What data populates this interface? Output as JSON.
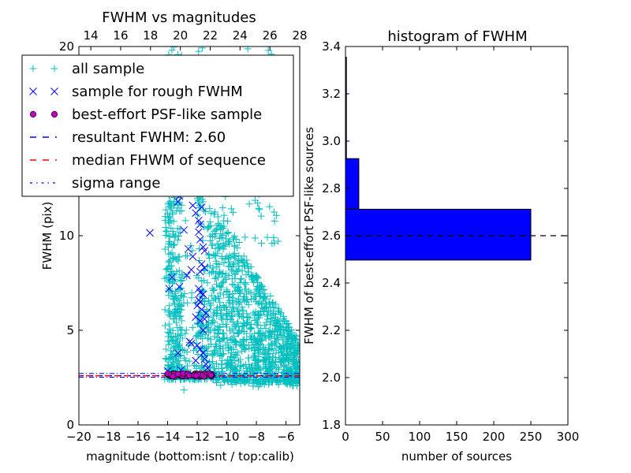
{
  "chart_data": [
    {
      "type": "scatter",
      "title": "FWHM vs magnitudes",
      "xlabel": "magnitude (bottom:isnt / top:calib)",
      "ylabel": "FWHM (pix)",
      "xlim": [
        -20,
        -5.07
      ],
      "ylim": [
        0,
        20
      ],
      "top_xlim": [
        13.2,
        28.0
      ],
      "x_ticks": [
        "−20",
        "−18",
        "−16",
        "−14",
        "−12",
        "−10",
        "−8",
        "−6"
      ],
      "x_tick_values": [
        -20,
        -18,
        -16,
        -14,
        -12,
        -10,
        -8,
        -6
      ],
      "top_x_ticks": [
        "14",
        "16",
        "18",
        "20",
        "22",
        "24",
        "26",
        "28"
      ],
      "top_x_tick_values": [
        14,
        16,
        18,
        20,
        22,
        24,
        26,
        28
      ],
      "y_ticks": [
        "0",
        "5",
        "10",
        "20"
      ],
      "y_tick_values": [
        0,
        5,
        10,
        20
      ],
      "legend_position": "upper-left",
      "legend": [
        {
          "label": "all sample",
          "marker": "plus",
          "color": "#00bfbf"
        },
        {
          "label": "sample for rough FWHM",
          "marker": "x",
          "color": "#0000ff"
        },
        {
          "label": "best-effort PSF-like sample",
          "marker": "circle",
          "color": "#bf00bf"
        },
        {
          "label": "resultant FWHM: 2.60",
          "marker": "dashed-line",
          "color": "#0000ff"
        },
        {
          "label": "median FHWM of sequence",
          "marker": "dashed-line",
          "color": "#ff0000"
        },
        {
          "label": "sigma range",
          "marker": "dashdot-line",
          "color": "#0000ff"
        }
      ],
      "series": [
        {
          "name": "all sample",
          "color": "#00bfbf",
          "clusters": [
            {
              "x_range": [
                -14.2,
                -11.0
              ],
              "y_range": [
                2.4,
                20
              ],
              "count": 700
            },
            {
              "x_range": [
                -11.0,
                -5.1
              ],
              "y_range": [
                2.0,
                9.5
              ],
              "count": 1100
            },
            {
              "x_range": [
                -10.5,
                -6.5
              ],
              "y_range": [
                9.5,
                20
              ],
              "count": 120
            }
          ]
        },
        {
          "name": "sample for rough FWHM",
          "color": "#0000ff",
          "points": [
            [
              -15.2,
              10.15
            ],
            [
              -13.3,
              11.8
            ],
            [
              -13.2,
              12.1
            ],
            [
              -12.9,
              10.3
            ],
            [
              -12.3,
              11.6
            ],
            [
              -12.1,
              11.2
            ],
            [
              -11.7,
              11.5
            ],
            [
              -11.9,
              10.8
            ],
            [
              -11.8,
              10.6
            ],
            [
              -11.9,
              10.2
            ],
            [
              -11.8,
              9.8
            ],
            [
              -11.6,
              9.4
            ],
            [
              -11.5,
              9.2
            ],
            [
              -12.6,
              9.3
            ],
            [
              -12.3,
              8.9
            ],
            [
              -11.7,
              8.5
            ],
            [
              -11.5,
              8.3
            ],
            [
              -11.8,
              8.1
            ],
            [
              -12.4,
              8.2
            ],
            [
              -12.7,
              7.9
            ],
            [
              -13.7,
              7.8
            ],
            [
              -13.9,
              7.2
            ],
            [
              -13.2,
              7.3
            ],
            [
              -11.9,
              7.2
            ],
            [
              -11.8,
              7.0
            ],
            [
              -11.6,
              6.9
            ],
            [
              -11.9,
              6.6
            ],
            [
              -11.8,
              6.5
            ],
            [
              -12.0,
              6.3
            ],
            [
              -11.7,
              6.1
            ],
            [
              -11.4,
              5.9
            ],
            [
              -11.5,
              5.6
            ],
            [
              -11.8,
              5.5
            ],
            [
              -12.1,
              5.7
            ],
            [
              -11.6,
              5.0
            ],
            [
              -12.5,
              4.4
            ],
            [
              -12.4,
              4.3
            ],
            [
              -12.0,
              4.2
            ],
            [
              -11.8,
              4.0
            ],
            [
              -11.6,
              3.8
            ],
            [
              -13.3,
              3.8
            ],
            [
              -12.1,
              3.4
            ],
            [
              -11.5,
              3.5
            ],
            [
              -11.4,
              3.2
            ],
            [
              -11.3,
              3.0
            ],
            [
              -13.1,
              2.9
            ],
            [
              -14.0,
              2.85
            ]
          ]
        },
        {
          "name": "best-effort PSF-like sample",
          "color": "#bf00bf",
          "x_range": [
            -14.0,
            -11.0
          ],
          "y_range": [
            2.55,
            2.72
          ]
        },
        {
          "name": "resultant FWHM: 2.60",
          "color": "#0000ff",
          "type": "hline",
          "y": 2.6
        },
        {
          "name": "median FHWM of sequence",
          "color": "#ff0000",
          "type": "hline",
          "y": 2.6
        },
        {
          "name": "sigma range",
          "color": "#0000ff",
          "type": "hline",
          "y": [
            2.52,
            2.72
          ]
        }
      ]
    },
    {
      "type": "bar",
      "orientation": "horizontal",
      "title": "histogram of FWHM",
      "xlabel": "number of sources",
      "ylabel": "FWHM of best-effort PSF-like sources",
      "xlim": [
        0,
        300
      ],
      "ylim": [
        1.8,
        3.4
      ],
      "x_ticks": [
        "0",
        "50",
        "100",
        "150",
        "200",
        "250",
        "300"
      ],
      "x_tick_values": [
        0,
        50,
        100,
        150,
        200,
        250,
        300
      ],
      "y_ticks": [
        "1.8",
        "2.0",
        "2.2",
        "2.4",
        "2.6",
        "2.8",
        "3.0",
        "3.2",
        "3.4"
      ],
      "y_tick_values": [
        1.8,
        2.0,
        2.2,
        2.4,
        2.6,
        2.8,
        3.0,
        3.2,
        3.4
      ],
      "bar_color": "#0000ff",
      "bins": [
        {
          "from": 2.497,
          "to": 2.712,
          "count": 250
        },
        {
          "from": 2.712,
          "to": 2.926,
          "count": 18
        },
        {
          "from": 2.926,
          "to": 3.355,
          "count": 1
        }
      ],
      "reference_line": {
        "y": 2.6,
        "style": "dashed",
        "color": "#000000"
      }
    }
  ]
}
